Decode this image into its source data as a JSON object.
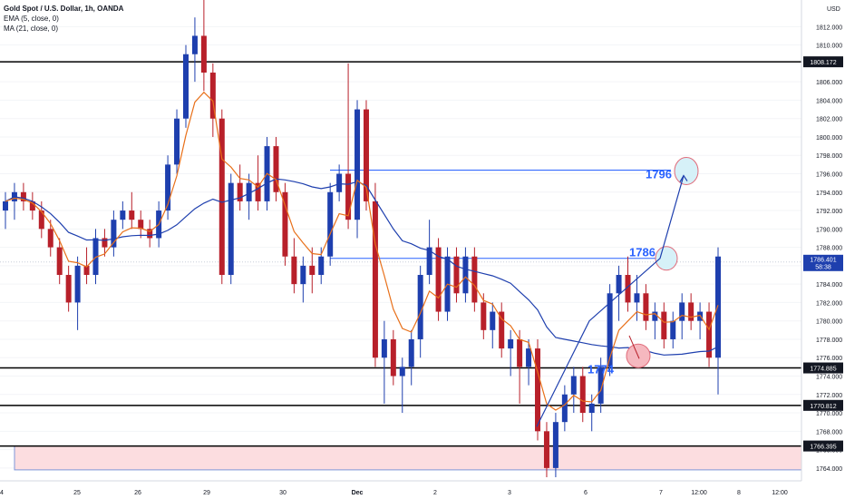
{
  "legend": {
    "title": "Gold Spot / U.S. Dollar, 1h, OANDA",
    "ema": "EMA (5, close, 0)",
    "ma": "MA (21, close, 0)"
  },
  "currency": "USD",
  "colors": {
    "bull": "#1e3fae",
    "bear": "#b8202a",
    "ema": "#e8701a",
    "ma": "#1e3fae",
    "level_line": "#000000",
    "target_line": "#2962ff",
    "target_text": "#2962ff",
    "support_zone_fill": "#fcdde0",
    "support_zone_border": "#7e96d8"
  },
  "chart_data": {
    "type": "candlestick",
    "y_ticks": [
      "1764.000",
      "1766.000",
      "1768.000",
      "1770.000",
      "1772.000",
      "1774.000",
      "1776.000",
      "1778.000",
      "1780.000",
      "1782.000",
      "1784.000",
      "1786.000",
      "1788.000",
      "1790.000",
      "1792.000",
      "1794.000",
      "1796.000",
      "1798.000",
      "1800.000",
      "1802.000",
      "1804.000",
      "1806.000",
      "1808.000",
      "1810.000",
      "1812.000"
    ],
    "ylim": [
      1763,
      1815
    ],
    "x_ticks": [
      "4",
      "25",
      "26",
      "29",
      "30",
      "Dec",
      "2",
      "3",
      "6",
      "7",
      "12:00",
      "8",
      "12:00"
    ],
    "current_price": "1786.401",
    "countdown": "58:38",
    "levels": [
      {
        "value": 1808.172,
        "label": "1808.172"
      },
      {
        "value": 1774.885,
        "label": "1774.885"
      },
      {
        "value": 1770.812,
        "label": "1770.812"
      },
      {
        "value": 1766.395,
        "label": "1766.395"
      }
    ],
    "support_zone": [
      1763.8,
      1766.4
    ],
    "annotations": [
      {
        "text": "1796",
        "value": 1796
      },
      {
        "text": "1786",
        "value": 1786
      },
      {
        "text": "1774",
        "value": 1774
      }
    ],
    "targets": [
      {
        "value": 1796.4
      },
      {
        "value": 1786.8
      }
    ],
    "candles": [
      [
        1792,
        1794,
        1790,
        1793
      ],
      [
        1793,
        1795,
        1791,
        1794
      ],
      [
        1794,
        1795,
        1792,
        1793
      ],
      [
        1793,
        1794,
        1791,
        1792
      ],
      [
        1792,
        1793,
        1789,
        1790
      ],
      [
        1790,
        1791,
        1787,
        1788
      ],
      [
        1788,
        1789,
        1784,
        1785
      ],
      [
        1785,
        1786,
        1781,
        1782
      ],
      [
        1782,
        1787,
        1779,
        1786
      ],
      [
        1786,
        1788,
        1784,
        1785
      ],
      [
        1785,
        1790,
        1784,
        1789
      ],
      [
        1789,
        1790,
        1787,
        1788
      ],
      [
        1788,
        1792,
        1787,
        1791
      ],
      [
        1791,
        1793,
        1790,
        1792
      ],
      [
        1792,
        1794,
        1790,
        1791
      ],
      [
        1791,
        1792,
        1789,
        1790
      ],
      [
        1790,
        1791,
        1788,
        1789
      ],
      [
        1789,
        1793,
        1788,
        1792
      ],
      [
        1792,
        1798,
        1791,
        1797
      ],
      [
        1797,
        1803,
        1796,
        1802
      ],
      [
        1802,
        1810,
        1801,
        1809
      ],
      [
        1809,
        1813,
        1806,
        1811
      ],
      [
        1811,
        1815,
        1805,
        1807
      ],
      [
        1807,
        1808,
        1800,
        1802
      ],
      [
        1802,
        1803,
        1784,
        1785
      ],
      [
        1785,
        1796,
        1784,
        1795
      ],
      [
        1795,
        1797,
        1792,
        1793
      ],
      [
        1793,
        1796,
        1791,
        1795
      ],
      [
        1795,
        1798,
        1792,
        1793
      ],
      [
        1793,
        1800,
        1792,
        1799
      ],
      [
        1799,
        1800,
        1793,
        1794
      ],
      [
        1794,
        1795,
        1786,
        1787
      ],
      [
        1787,
        1789,
        1783,
        1784
      ],
      [
        1784,
        1787,
        1782,
        1786
      ],
      [
        1786,
        1788,
        1783,
        1785
      ],
      [
        1785,
        1788,
        1784,
        1787
      ],
      [
        1787,
        1795,
        1786,
        1794
      ],
      [
        1794,
        1797,
        1793,
        1796
      ],
      [
        1796,
        1808,
        1790,
        1791
      ],
      [
        1791,
        1804,
        1789,
        1803
      ],
      [
        1803,
        1804,
        1792,
        1793
      ],
      [
        1793,
        1795,
        1775,
        1776
      ],
      [
        1776,
        1780,
        1771,
        1778
      ],
      [
        1778,
        1779,
        1773,
        1774
      ],
      [
        1774,
        1776,
        1770,
        1775
      ],
      [
        1775,
        1779,
        1773,
        1778
      ],
      [
        1778,
        1786,
        1776,
        1785
      ],
      [
        1785,
        1791,
        1784,
        1788
      ],
      [
        1788,
        1789,
        1780,
        1781
      ],
      [
        1781,
        1788,
        1780,
        1787
      ],
      [
        1787,
        1788,
        1782,
        1783
      ],
      [
        1783,
        1788,
        1782,
        1787
      ],
      [
        1787,
        1788,
        1781,
        1782
      ],
      [
        1782,
        1783,
        1778,
        1779
      ],
      [
        1779,
        1782,
        1777,
        1781
      ],
      [
        1781,
        1782,
        1776,
        1777
      ],
      [
        1777,
        1779,
        1774,
        1778
      ],
      [
        1778,
        1779,
        1771,
        1775
      ],
      [
        1775,
        1778,
        1773,
        1777
      ],
      [
        1777,
        1778,
        1767,
        1768
      ],
      [
        1768,
        1769,
        1763,
        1764
      ],
      [
        1764,
        1770,
        1763,
        1769
      ],
      [
        1769,
        1773,
        1768,
        1772
      ],
      [
        1772,
        1775,
        1770,
        1774
      ],
      [
        1774,
        1775,
        1769,
        1770
      ],
      [
        1770,
        1772,
        1768,
        1771
      ],
      [
        1771,
        1776,
        1770,
        1775
      ],
      [
        1775,
        1784,
        1774,
        1783
      ],
      [
        1783,
        1786,
        1780,
        1785
      ],
      [
        1785,
        1787,
        1781,
        1782
      ],
      [
        1782,
        1785,
        1780,
        1783
      ],
      [
        1783,
        1784,
        1779,
        1780
      ],
      [
        1780,
        1782,
        1778,
        1781
      ],
      [
        1781,
        1782,
        1777,
        1778
      ],
      [
        1778,
        1781,
        1777,
        1780
      ],
      [
        1780,
        1783,
        1778,
        1782
      ],
      [
        1782,
        1783,
        1779,
        1780
      ],
      [
        1780,
        1782,
        1778,
        1781
      ],
      [
        1781,
        1782,
        1775,
        1776
      ],
      [
        1776,
        1788,
        1772,
        1787
      ]
    ]
  }
}
